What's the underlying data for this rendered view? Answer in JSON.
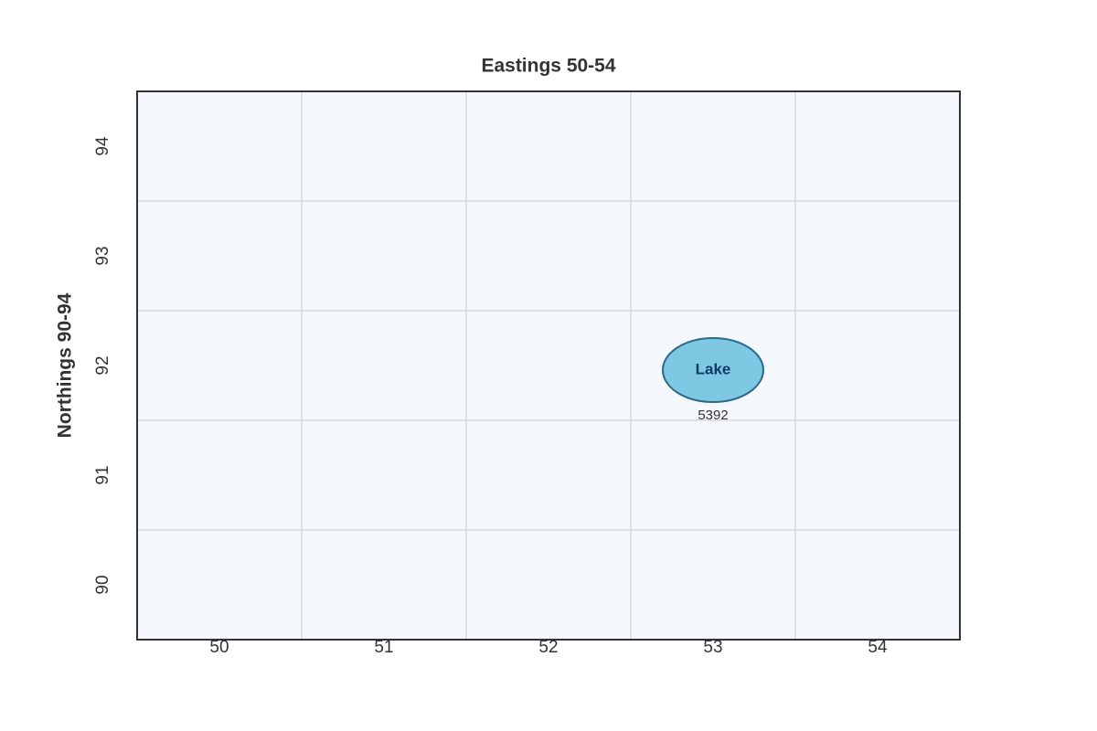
{
  "title": "Eastings 50-54",
  "y_label": "Northings 90-94",
  "eastings": [
    50,
    51,
    52,
    53,
    54
  ],
  "northings": [
    90,
    91,
    92,
    93,
    94
  ],
  "features": [
    {
      "label": "Lake",
      "grid_ref": "5392"
    }
  ]
}
